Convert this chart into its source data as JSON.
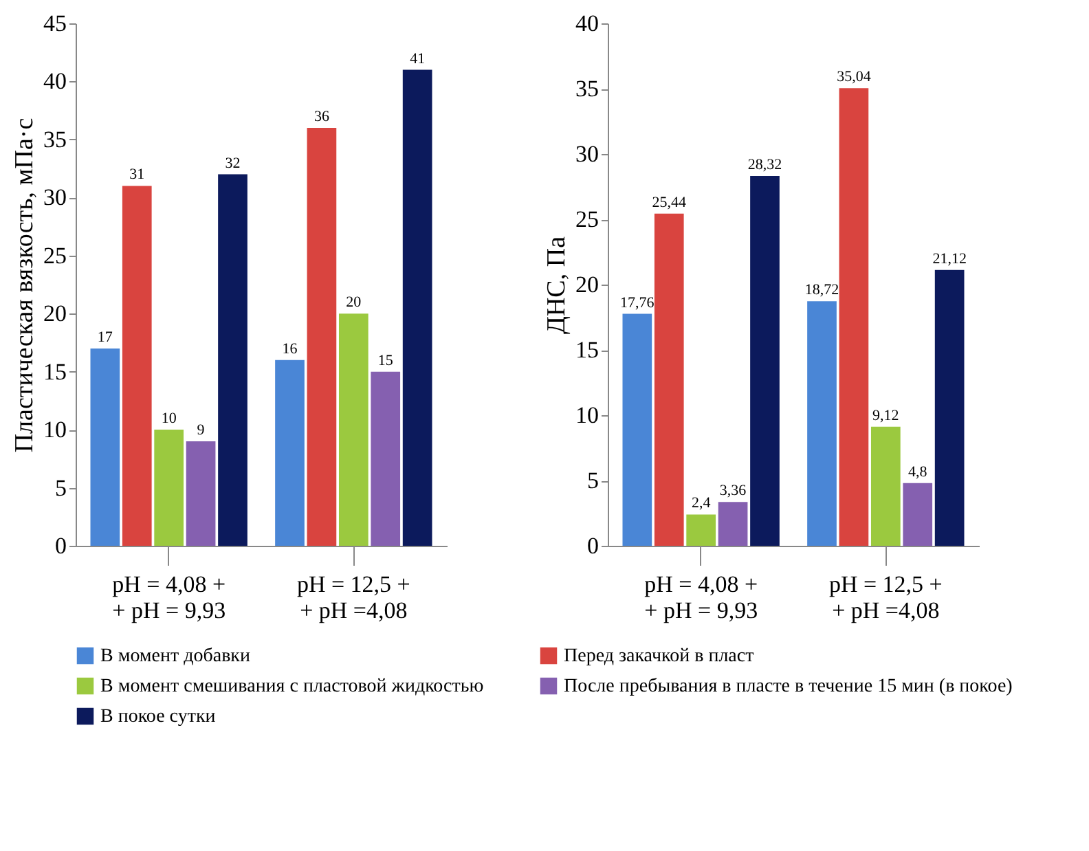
{
  "chart_data": [
    {
      "type": "bar",
      "ylabel": "Пластическая вязкость, мПа·с",
      "categories": [
        "pH = 4,08 +\n+ pH = 9,93",
        "pH = 12,5 +\n+ pH =4,08"
      ],
      "ylim": [
        0,
        45
      ],
      "yticks": [
        0,
        5,
        10,
        15,
        20,
        25,
        30,
        35,
        40,
        45
      ],
      "grid": false,
      "legend": "bottom",
      "data_labels": true,
      "series": [
        {
          "name": "В момент добавки",
          "color": "#4a86d6",
          "values": [
            17,
            16
          ]
        },
        {
          "name": "Перед закачкой в пласт",
          "color": "#d9443f",
          "values": [
            31,
            36
          ]
        },
        {
          "name": "В момент смешивания с пластовой жидкостью",
          "color": "#9bc93f",
          "values": [
            10,
            20
          ]
        },
        {
          "name": "После пребывания в пласте в течение 15 мин (в покое)",
          "color": "#8560b0",
          "values": [
            9,
            15
          ]
        },
        {
          "name": "В покое сутки",
          "color": "#0c1a5c",
          "values": [
            32,
            41
          ]
        }
      ]
    },
    {
      "type": "bar",
      "ylabel": "ДНС, Па",
      "categories": [
        "pH = 4,08 +\n+ pH = 9,93",
        "pH = 12,5 +\n+ pH =4,08"
      ],
      "ylim": [
        0,
        40
      ],
      "yticks": [
        0,
        5,
        10,
        15,
        20,
        25,
        30,
        35,
        40
      ],
      "grid": false,
      "legend": "bottom",
      "series": [
        {
          "name": "В момент добавки",
          "color": "#4a86d6",
          "values": [
            17.76,
            18.72
          ],
          "value_labels": [
            "17,76",
            "18,72"
          ]
        },
        {
          "name": "Перед закачкой в пласт",
          "color": "#d9443f",
          "values": [
            25.44,
            35.04
          ],
          "value_labels": [
            "25,44",
            "35,04"
          ]
        },
        {
          "name": "В момент смешивания с пластовой жидкостью",
          "color": "#9bc93f",
          "values": [
            2.4,
            9.12
          ],
          "value_labels": [
            "2,4",
            "9,12"
          ]
        },
        {
          "name": "После пребывания в пласте в течение 15 мин (в покое)",
          "color": "#8560b0",
          "values": [
            3.36,
            4.8
          ],
          "value_labels": [
            "3,36",
            "4,8"
          ]
        },
        {
          "name": "В покое сутки",
          "color": "#0c1a5c",
          "values": [
            28.32,
            21.12
          ],
          "value_labels": [
            "28,32",
            "21,12"
          ]
        }
      ]
    }
  ]
}
